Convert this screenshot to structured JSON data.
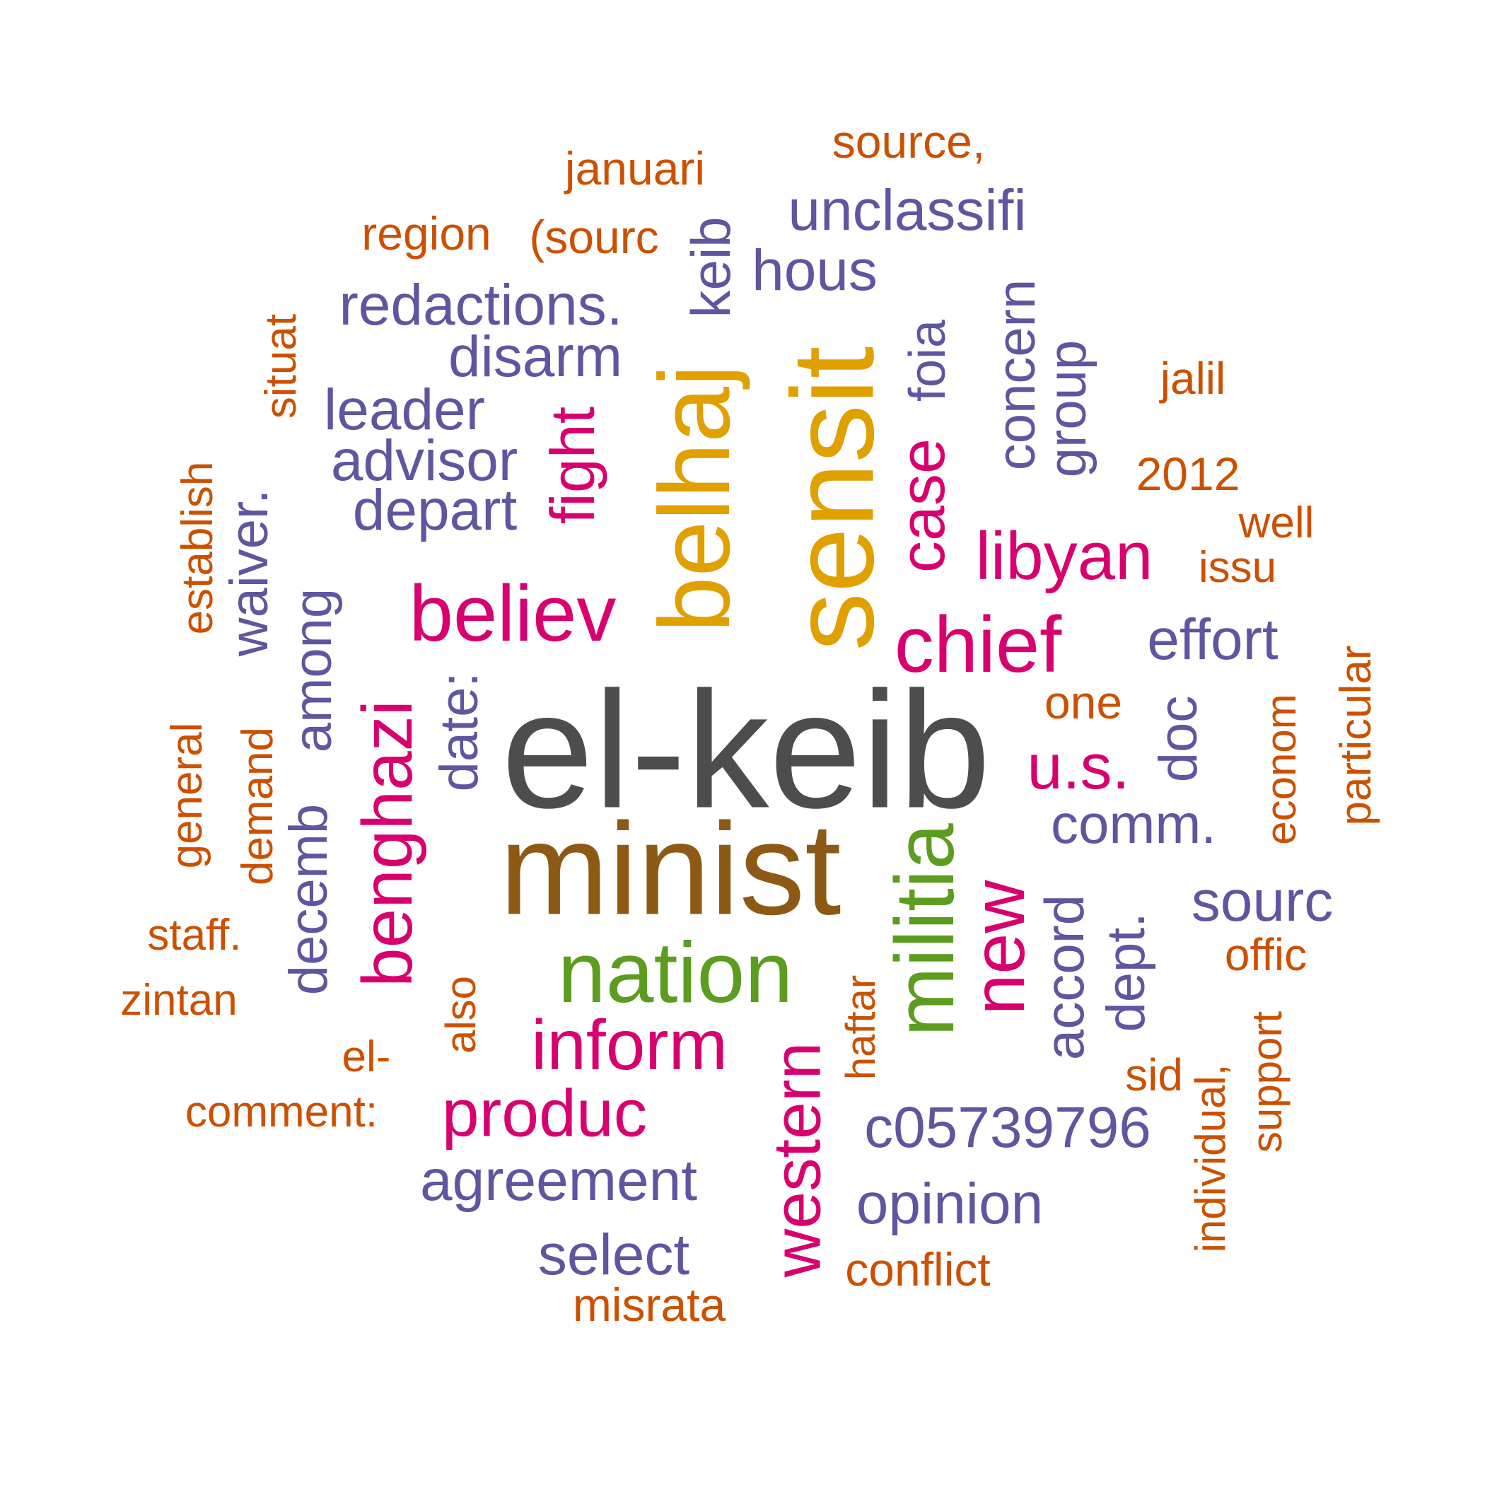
{
  "palette": {
    "gray": "#4d4d4d",
    "brown": "#8c5a14",
    "gold": "#e0a000",
    "green": "#5c9c1e",
    "magenta": "#d8006e",
    "purple": "#5e56a0",
    "orange": "#cc5000"
  },
  "words": [
    {
      "text": "el-keib",
      "color": "gray"
    },
    {
      "text": "minist",
      "color": "brown"
    },
    {
      "text": "sensit",
      "color": "gold"
    },
    {
      "text": "belhaj",
      "color": "gold"
    },
    {
      "text": "nation",
      "color": "green"
    },
    {
      "text": "militia",
      "color": "green"
    },
    {
      "text": "believ",
      "color": "magenta"
    },
    {
      "text": "chief",
      "color": "magenta"
    },
    {
      "text": "benghazi",
      "color": "magenta"
    },
    {
      "text": "new",
      "color": "magenta"
    },
    {
      "text": "inform",
      "color": "magenta"
    },
    {
      "text": "produc",
      "color": "magenta"
    },
    {
      "text": "western",
      "color": "magenta"
    },
    {
      "text": "libyan",
      "color": "magenta"
    },
    {
      "text": "case",
      "color": "magenta"
    },
    {
      "text": "fight",
      "color": "magenta"
    },
    {
      "text": "u.s.",
      "color": "magenta"
    },
    {
      "text": "foia",
      "color": "purple"
    },
    {
      "text": "unclassifi",
      "color": "purple"
    },
    {
      "text": "hous",
      "color": "purple"
    },
    {
      "text": "redactions.",
      "color": "purple"
    },
    {
      "text": "disarm",
      "color": "purple"
    },
    {
      "text": "keib",
      "color": "purple"
    },
    {
      "text": "leader",
      "color": "purple"
    },
    {
      "text": "advisor",
      "color": "purple"
    },
    {
      "text": "depart",
      "color": "purple"
    },
    {
      "text": "concern",
      "color": "purple"
    },
    {
      "text": "group",
      "color": "purple"
    },
    {
      "text": "effort",
      "color": "purple"
    },
    {
      "text": "comm.",
      "color": "purple"
    },
    {
      "text": "doc",
      "color": "purple"
    },
    {
      "text": "sourc",
      "color": "purple"
    },
    {
      "text": "accord",
      "color": "purple"
    },
    {
      "text": "dept.",
      "color": "purple"
    },
    {
      "text": "c05739796",
      "color": "purple"
    },
    {
      "text": "opinion",
      "color": "purple"
    },
    {
      "text": "agreement",
      "color": "purple"
    },
    {
      "text": "select",
      "color": "purple"
    },
    {
      "text": "among",
      "color": "purple"
    },
    {
      "text": "waiver.",
      "color": "purple"
    },
    {
      "text": "decemb",
      "color": "purple"
    },
    {
      "text": "date:",
      "color": "purple"
    },
    {
      "text": "source,",
      "color": "orange"
    },
    {
      "text": "januari",
      "color": "orange"
    },
    {
      "text": "region",
      "color": "orange"
    },
    {
      "text": "(sourc",
      "color": "orange"
    },
    {
      "text": "situat",
      "color": "orange"
    },
    {
      "text": "jalil",
      "color": "orange"
    },
    {
      "text": "2012",
      "color": "orange"
    },
    {
      "text": "well",
      "color": "orange"
    },
    {
      "text": "issu",
      "color": "orange"
    },
    {
      "text": "establish",
      "color": "orange"
    },
    {
      "text": "general",
      "color": "orange"
    },
    {
      "text": "demand",
      "color": "orange"
    },
    {
      "text": "staff.",
      "color": "orange"
    },
    {
      "text": "zintan",
      "color": "orange"
    },
    {
      "text": "el-",
      "color": "orange"
    },
    {
      "text": "also",
      "color": "orange"
    },
    {
      "text": "comment:",
      "color": "orange"
    },
    {
      "text": "misrata",
      "color": "orange"
    },
    {
      "text": "conflict",
      "color": "orange"
    },
    {
      "text": "haftar",
      "color": "orange"
    },
    {
      "text": "one",
      "color": "orange"
    },
    {
      "text": "econom",
      "color": "orange"
    },
    {
      "text": "particular",
      "color": "orange"
    },
    {
      "text": "offic",
      "color": "orange"
    },
    {
      "text": "support",
      "color": "orange"
    },
    {
      "text": "individual,",
      "color": "orange"
    },
    {
      "text": "sid",
      "color": "orange"
    }
  ]
}
